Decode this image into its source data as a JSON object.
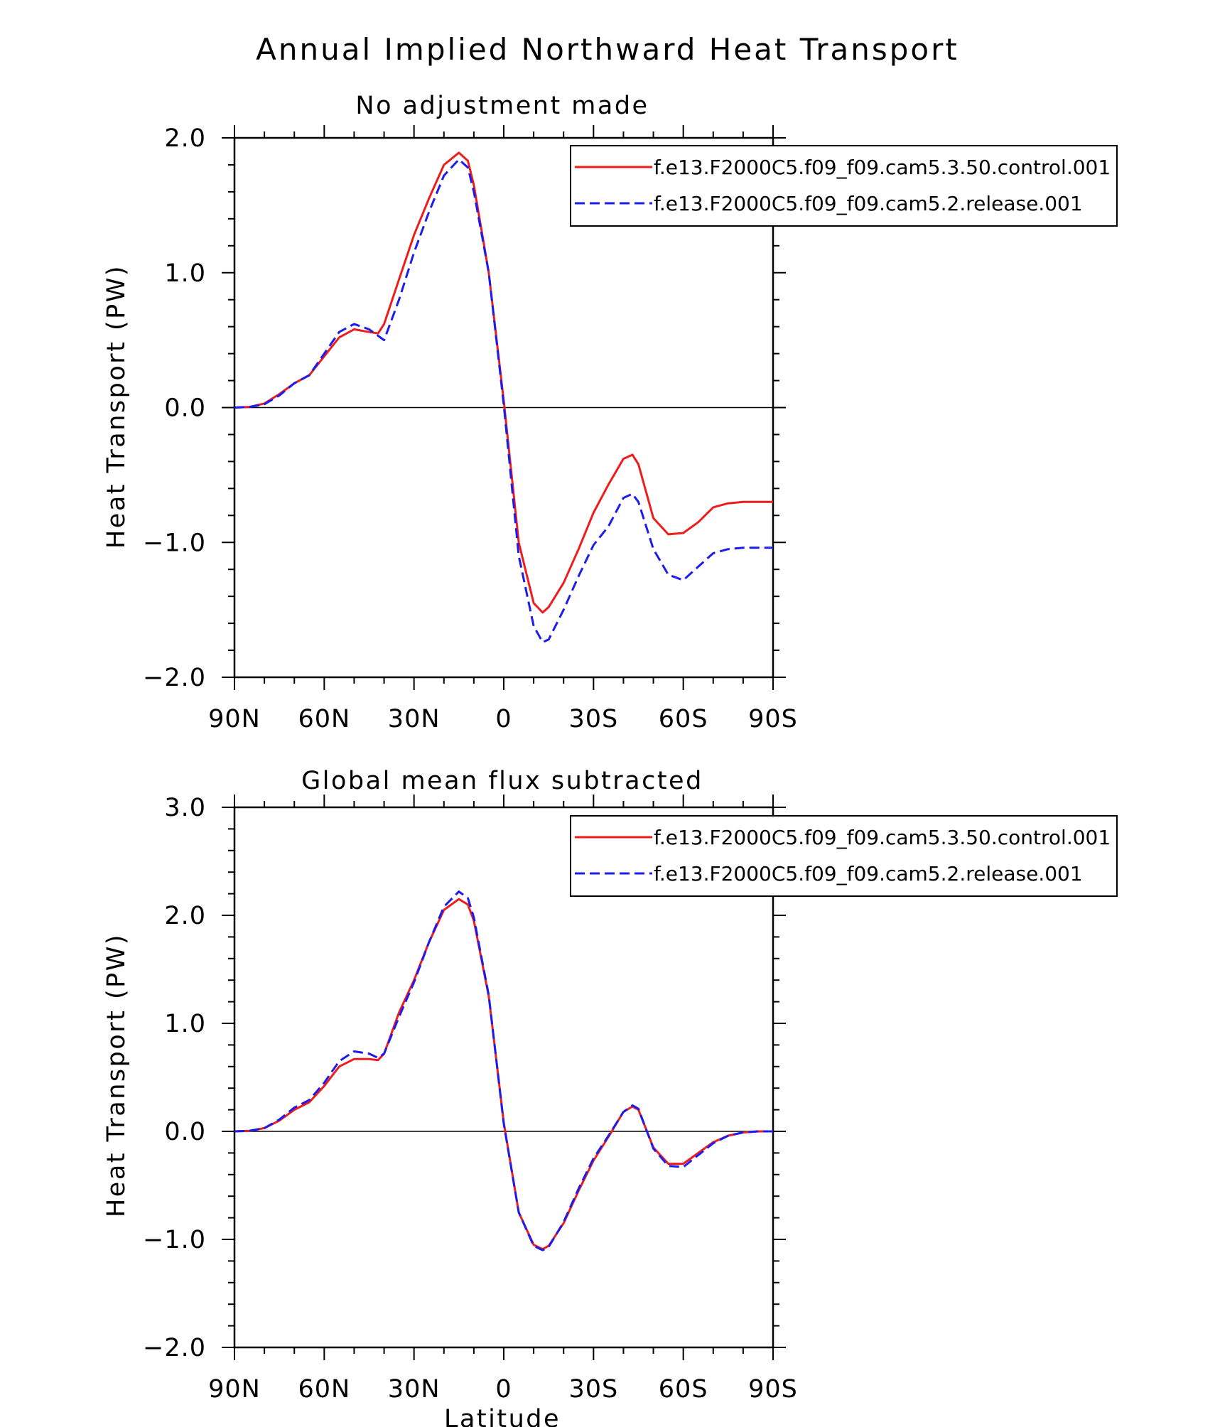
{
  "title": "Annual Implied Northward Heat Transport",
  "colors": {
    "control": "#ee1c1c",
    "release": "#1c1cee",
    "axis": "#000000"
  },
  "chart_data": [
    {
      "type": "line",
      "subtitle": "No adjustment made",
      "ylabel": "Heat Transport (PW)",
      "xlabel": "",
      "xlim": [
        90,
        -90
      ],
      "ylim": [
        -2.0,
        2.0
      ],
      "yticks": [
        {
          "value": 2.0,
          "label": "2.0"
        },
        {
          "value": 1.0,
          "label": "1.0"
        },
        {
          "value": 0.0,
          "label": "0.0"
        },
        {
          "value": -1.0,
          "label": "−1.0"
        },
        {
          "value": -2.0,
          "label": "−2.0"
        }
      ],
      "xticks": [
        {
          "value": 90,
          "label": "90N"
        },
        {
          "value": 60,
          "label": "60N"
        },
        {
          "value": 30,
          "label": "30N"
        },
        {
          "value": 0,
          "label": "0"
        },
        {
          "value": -30,
          "label": "30S"
        },
        {
          "value": -60,
          "label": "60S"
        },
        {
          "value": -90,
          "label": "90S"
        }
      ],
      "legend": "top-right",
      "grid": false,
      "series": [
        {
          "name": "f.e13.F2000C5.f09_f09.cam5.3.50.control.001",
          "style": "solid",
          "x": [
            90,
            85,
            80,
            75,
            70,
            65,
            60,
            55,
            50,
            45,
            42,
            40,
            35,
            30,
            25,
            20,
            15,
            12,
            10,
            5,
            0,
            -5,
            -10,
            -13,
            -15,
            -20,
            -25,
            -30,
            -35,
            -40,
            -43,
            -45,
            -50,
            -55,
            -60,
            -65,
            -70,
            -75,
            -80,
            -90
          ],
          "y": [
            0.0,
            0.005,
            0.03,
            0.1,
            0.18,
            0.24,
            0.38,
            0.52,
            0.58,
            0.56,
            0.55,
            0.62,
            0.95,
            1.28,
            1.55,
            1.8,
            1.89,
            1.83,
            1.65,
            1.0,
            0.05,
            -1.0,
            -1.45,
            -1.52,
            -1.48,
            -1.3,
            -1.05,
            -0.78,
            -0.57,
            -0.38,
            -0.35,
            -0.42,
            -0.82,
            -0.94,
            -0.93,
            -0.85,
            -0.74,
            -0.71,
            -0.7,
            -0.7
          ]
        },
        {
          "name": "f.e13.F2000C5.f09_f09.cam5.2.release.001",
          "style": "dashed",
          "x": [
            90,
            85,
            80,
            75,
            70,
            65,
            60,
            55,
            50,
            45,
            40,
            35,
            30,
            25,
            20,
            15,
            12,
            10,
            5,
            0,
            -5,
            -10,
            -13,
            -15,
            -20,
            -25,
            -30,
            -35,
            -40,
            -43,
            -45,
            -50,
            -55,
            -60,
            -65,
            -70,
            -75,
            -80,
            -90
          ],
          "y": [
            0.0,
            0.005,
            0.025,
            0.09,
            0.18,
            0.24,
            0.4,
            0.56,
            0.62,
            0.58,
            0.5,
            0.8,
            1.15,
            1.45,
            1.72,
            1.84,
            1.78,
            1.6,
            1.0,
            0.02,
            -1.1,
            -1.62,
            -1.74,
            -1.72,
            -1.5,
            -1.25,
            -1.02,
            -0.88,
            -0.67,
            -0.64,
            -0.7,
            -1.05,
            -1.24,
            -1.28,
            -1.18,
            -1.08,
            -1.05,
            -1.04,
            -1.04
          ]
        }
      ]
    },
    {
      "type": "line",
      "subtitle": "Global mean flux subtracted",
      "ylabel": "Heat Transport (PW)",
      "xlabel": "Latitude",
      "xlim": [
        90,
        -90
      ],
      "ylim": [
        -2.0,
        3.0
      ],
      "yticks": [
        {
          "value": 3.0,
          "label": "3.0"
        },
        {
          "value": 2.0,
          "label": "2.0"
        },
        {
          "value": 1.0,
          "label": "1.0"
        },
        {
          "value": 0.0,
          "label": "0.0"
        },
        {
          "value": -1.0,
          "label": "−1.0"
        },
        {
          "value": -2.0,
          "label": "−2.0"
        }
      ],
      "xticks": [
        {
          "value": 90,
          "label": "90N"
        },
        {
          "value": 60,
          "label": "60N"
        },
        {
          "value": 30,
          "label": "30N"
        },
        {
          "value": 0,
          "label": "0"
        },
        {
          "value": -30,
          "label": "30S"
        },
        {
          "value": -60,
          "label": "60S"
        },
        {
          "value": -90,
          "label": "90S"
        }
      ],
      "legend": "top-right",
      "grid": false,
      "series": [
        {
          "name": "f.e13.F2000C5.f09_f09.cam5.3.50.control.001",
          "style": "solid",
          "x": [
            90,
            85,
            80,
            75,
            70,
            65,
            60,
            55,
            50,
            45,
            42,
            40,
            35,
            30,
            25,
            20,
            15,
            12,
            10,
            5,
            0,
            -5,
            -10,
            -13,
            -15,
            -20,
            -25,
            -30,
            -35,
            -40,
            -43,
            -45,
            -50,
            -55,
            -60,
            -65,
            -70,
            -75,
            -80,
            -85,
            -90
          ],
          "y": [
            0.0,
            0.005,
            0.03,
            0.1,
            0.2,
            0.27,
            0.42,
            0.6,
            0.67,
            0.67,
            0.66,
            0.72,
            1.1,
            1.4,
            1.75,
            2.05,
            2.15,
            2.1,
            1.95,
            1.25,
            0.08,
            -0.75,
            -1.05,
            -1.09,
            -1.06,
            -0.85,
            -0.55,
            -0.27,
            -0.05,
            0.18,
            0.23,
            0.2,
            -0.15,
            -0.3,
            -0.3,
            -0.2,
            -0.1,
            -0.04,
            -0.01,
            0.0,
            0.0
          ]
        },
        {
          "name": "f.e13.F2000C5.f09_f09.cam5.2.release.001",
          "style": "dashed",
          "x": [
            90,
            85,
            80,
            75,
            70,
            65,
            60,
            55,
            50,
            45,
            42,
            40,
            35,
            30,
            25,
            20,
            15,
            12,
            10,
            5,
            0,
            -5,
            -10,
            -13,
            -15,
            -20,
            -25,
            -30,
            -35,
            -40,
            -43,
            -45,
            -50,
            -55,
            -60,
            -65,
            -70,
            -75,
            -80,
            -85,
            -90
          ],
          "y": [
            0.0,
            0.005,
            0.03,
            0.11,
            0.22,
            0.29,
            0.45,
            0.65,
            0.74,
            0.72,
            0.68,
            0.72,
            1.06,
            1.38,
            1.75,
            2.08,
            2.22,
            2.16,
            1.98,
            1.26,
            0.07,
            -0.75,
            -1.06,
            -1.1,
            -1.07,
            -0.84,
            -0.53,
            -0.25,
            -0.04,
            0.18,
            0.24,
            0.21,
            -0.16,
            -0.32,
            -0.33,
            -0.22,
            -0.11,
            -0.04,
            -0.01,
            0.0,
            0.0
          ]
        }
      ]
    }
  ]
}
